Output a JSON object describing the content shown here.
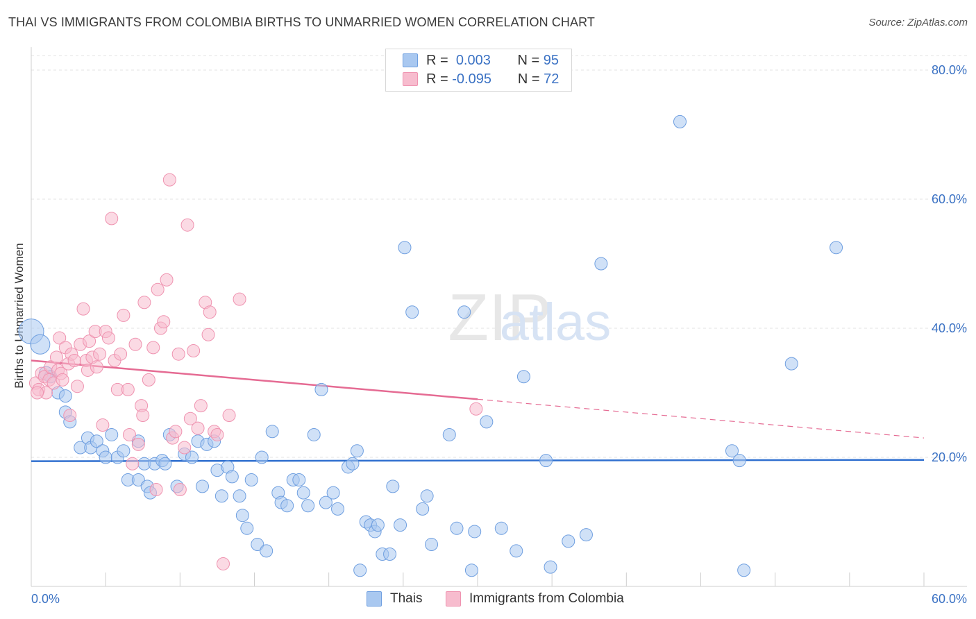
{
  "header": {
    "title": "THAI VS IMMIGRANTS FROM COLOMBIA BIRTHS TO UNMARRIED WOMEN CORRELATION CHART",
    "source": "Source: ZipAtlas.com"
  },
  "watermark": {
    "zip": "ZIP",
    "atlas": "atlas"
  },
  "legend": {
    "rows": [
      {
        "r_label": "R =",
        "r_value": "0.003",
        "n_label": "N =",
        "n_value": "95",
        "color": "#a9c8f0"
      },
      {
        "r_label": "R =",
        "r_value": "-0.095",
        "n_label": "N =",
        "n_value": "72",
        "color": "#f7bcce"
      }
    ]
  },
  "bottom_legend": {
    "items": [
      {
        "label": "Thais",
        "color": "#a9c8f0"
      },
      {
        "label": "Immigrants from Colombia",
        "color": "#f7bcce"
      }
    ]
  },
  "chart_data": {
    "type": "scatter",
    "title": "THAI VS IMMIGRANTS FROM COLOMBIA BIRTHS TO UNMARRIED WOMEN CORRELATION CHART",
    "xlabel": "",
    "ylabel": "Births to Unmarried Women",
    "xlim": [
      0,
      60
    ],
    "ylim": [
      0,
      82
    ],
    "x_tick_labels": [
      "0.0%",
      "60.0%"
    ],
    "y_ticks": [
      20,
      40,
      60,
      80
    ],
    "y_tick_labels": [
      "20.0%",
      "40.0%",
      "60.0%",
      "80.0%"
    ],
    "grid": true,
    "legend_position": "top-center",
    "series": [
      {
        "name": "Thais",
        "color": "#6f9fe0",
        "fill": "#a9c8f0",
        "trend": {
          "x": [
            0,
            60
          ],
          "y": [
            19.4,
            19.6
          ],
          "style": "solid",
          "color": "#2f6fcf"
        },
        "points": [
          [
            0.0,
            39.5,
            18
          ],
          [
            0.6,
            37.5,
            14
          ],
          [
            1.0,
            33.0,
            10
          ],
          [
            1.3,
            32.5,
            9
          ],
          [
            1.8,
            30.0,
            9
          ],
          [
            2.3,
            29.5,
            9
          ],
          [
            2.3,
            27.0,
            9
          ],
          [
            2.6,
            25.5,
            9
          ],
          [
            3.3,
            21.5,
            9
          ],
          [
            3.8,
            23.0,
            9
          ],
          [
            4.0,
            21.5,
            9
          ],
          [
            4.4,
            22.5,
            9
          ],
          [
            4.8,
            21.0,
            9
          ],
          [
            5.0,
            20.0,
            9
          ],
          [
            5.4,
            23.5,
            9
          ],
          [
            5.8,
            20.0,
            9
          ],
          [
            6.2,
            21.0,
            9
          ],
          [
            6.5,
            16.5,
            9
          ],
          [
            7.2,
            16.5,
            9
          ],
          [
            7.2,
            22.5,
            9
          ],
          [
            7.6,
            19.0,
            9
          ],
          [
            7.8,
            15.5,
            9
          ],
          [
            8.0,
            14.5,
            9
          ],
          [
            8.3,
            19.0,
            9
          ],
          [
            8.8,
            19.5,
            9
          ],
          [
            9.0,
            19.0,
            9
          ],
          [
            9.3,
            23.5,
            9
          ],
          [
            9.8,
            15.5,
            9
          ],
          [
            10.3,
            20.5,
            9
          ],
          [
            10.8,
            20.0,
            9
          ],
          [
            11.2,
            22.5,
            9
          ],
          [
            11.5,
            15.5,
            9
          ],
          [
            11.8,
            22.0,
            9
          ],
          [
            12.3,
            22.5,
            9
          ],
          [
            12.5,
            18.0,
            9
          ],
          [
            12.8,
            14.0,
            9
          ],
          [
            13.2,
            18.5,
            9
          ],
          [
            13.5,
            17.0,
            9
          ],
          [
            14.0,
            14.0,
            9
          ],
          [
            14.2,
            11.0,
            9
          ],
          [
            14.5,
            9.0,
            9
          ],
          [
            14.8,
            16.5,
            9
          ],
          [
            15.2,
            6.5,
            9
          ],
          [
            15.5,
            20.0,
            9
          ],
          [
            15.8,
            5.5,
            9
          ],
          [
            16.2,
            24.0,
            9
          ],
          [
            16.6,
            14.5,
            9
          ],
          [
            16.8,
            13.0,
            9
          ],
          [
            17.2,
            12.5,
            9
          ],
          [
            17.6,
            16.5,
            9
          ],
          [
            18.0,
            16.5,
            9
          ],
          [
            18.3,
            14.5,
            9
          ],
          [
            18.6,
            12.5,
            9
          ],
          [
            19.0,
            23.5,
            9
          ],
          [
            19.5,
            30.5,
            9
          ],
          [
            19.8,
            13.0,
            9
          ],
          [
            20.3,
            14.5,
            9
          ],
          [
            20.6,
            12.0,
            9
          ],
          [
            21.3,
            18.5,
            9
          ],
          [
            21.6,
            19.0,
            9
          ],
          [
            21.9,
            21.0,
            9
          ],
          [
            22.1,
            2.5,
            9
          ],
          [
            22.5,
            10.0,
            9
          ],
          [
            22.8,
            9.5,
            9
          ],
          [
            23.1,
            8.5,
            9
          ],
          [
            23.3,
            9.5,
            9
          ],
          [
            23.6,
            5.0,
            9
          ],
          [
            24.1,
            5.0,
            9
          ],
          [
            24.3,
            15.5,
            9
          ],
          [
            24.8,
            9.5,
            9
          ],
          [
            25.1,
            52.5,
            9
          ],
          [
            25.6,
            42.5,
            9
          ],
          [
            26.3,
            12.0,
            9
          ],
          [
            26.6,
            14.0,
            9
          ],
          [
            26.9,
            6.5,
            9
          ],
          [
            28.1,
            23.5,
            9
          ],
          [
            28.6,
            9.0,
            9
          ],
          [
            29.1,
            42.5,
            9
          ],
          [
            29.6,
            2.5,
            9
          ],
          [
            29.8,
            8.5,
            9
          ],
          [
            30.6,
            25.5,
            9
          ],
          [
            31.6,
            9.0,
            9
          ],
          [
            32.6,
            5.5,
            9
          ],
          [
            33.1,
            32.5,
            9
          ],
          [
            34.6,
            19.5,
            9
          ],
          [
            34.9,
            3.0,
            9
          ],
          [
            36.1,
            7.0,
            9
          ],
          [
            37.3,
            8.0,
            9
          ],
          [
            38.3,
            50.0,
            9
          ],
          [
            43.6,
            72.0,
            9
          ],
          [
            47.1,
            21.0,
            9
          ],
          [
            47.6,
            19.5,
            9
          ],
          [
            47.9,
            2.5,
            9
          ],
          [
            51.1,
            34.5,
            9
          ],
          [
            54.1,
            52.5,
            9
          ]
        ]
      },
      {
        "name": "Immigrants from Colombia",
        "color": "#ef93b0",
        "fill": "#f7bcce",
        "trend": {
          "x": [
            0,
            60
          ],
          "y": [
            35.0,
            23.0
          ],
          "solid_until_x": 30.0,
          "style": "solid-then-dashed",
          "color": "#e56b93"
        },
        "points": [
          [
            0.3,
            31.5,
            9
          ],
          [
            0.5,
            30.5,
            9
          ],
          [
            0.7,
            33.0,
            9
          ],
          [
            0.9,
            32.5,
            9
          ],
          [
            1.0,
            30.0,
            9
          ],
          [
            1.2,
            32.0,
            9
          ],
          [
            1.3,
            34.0,
            9
          ],
          [
            1.5,
            31.5,
            9
          ],
          [
            1.7,
            35.5,
            9
          ],
          [
            1.8,
            33.5,
            9
          ],
          [
            1.9,
            38.5,
            9
          ],
          [
            2.0,
            33.0,
            9
          ],
          [
            2.1,
            32.0,
            9
          ],
          [
            2.3,
            37.0,
            9
          ],
          [
            2.5,
            34.5,
            9
          ],
          [
            2.6,
            26.5,
            9
          ],
          [
            2.7,
            36.0,
            9
          ],
          [
            2.9,
            35.0,
            9
          ],
          [
            3.1,
            31.0,
            9
          ],
          [
            3.3,
            37.5,
            9
          ],
          [
            3.5,
            43.0,
            9
          ],
          [
            3.7,
            35.0,
            9
          ],
          [
            3.8,
            33.5,
            9
          ],
          [
            3.9,
            38.0,
            9
          ],
          [
            4.1,
            35.5,
            9
          ],
          [
            4.3,
            39.5,
            9
          ],
          [
            4.4,
            34.0,
            9
          ],
          [
            4.6,
            36.0,
            9
          ],
          [
            4.8,
            25.0,
            9
          ],
          [
            5.0,
            39.5,
            9
          ],
          [
            5.2,
            38.5,
            9
          ],
          [
            5.4,
            57.0,
            9
          ],
          [
            5.6,
            35.0,
            9
          ],
          [
            5.8,
            30.5,
            9
          ],
          [
            6.0,
            36.0,
            9
          ],
          [
            6.2,
            42.0,
            9
          ],
          [
            6.5,
            30.5,
            9
          ],
          [
            6.6,
            23.5,
            9
          ],
          [
            6.8,
            19.0,
            9
          ],
          [
            7.0,
            37.5,
            9
          ],
          [
            7.2,
            22.0,
            9
          ],
          [
            7.4,
            28.0,
            9
          ],
          [
            7.5,
            26.5,
            9
          ],
          [
            7.6,
            44.0,
            9
          ],
          [
            7.9,
            32.0,
            9
          ],
          [
            8.2,
            37.0,
            9
          ],
          [
            8.4,
            15.0,
            9
          ],
          [
            8.5,
            46.0,
            9
          ],
          [
            8.7,
            40.0,
            9
          ],
          [
            8.9,
            41.0,
            9
          ],
          [
            9.1,
            47.5,
            9
          ],
          [
            9.3,
            63.0,
            9
          ],
          [
            9.5,
            23.0,
            9
          ],
          [
            9.7,
            24.0,
            9
          ],
          [
            9.9,
            36.0,
            9
          ],
          [
            10.0,
            15.0,
            9
          ],
          [
            10.3,
            21.5,
            9
          ],
          [
            10.5,
            56.0,
            9
          ],
          [
            10.7,
            26.0,
            9
          ],
          [
            10.9,
            36.5,
            9
          ],
          [
            11.2,
            24.5,
            9
          ],
          [
            11.4,
            28.0,
            9
          ],
          [
            11.7,
            44.0,
            9
          ],
          [
            11.9,
            39.0,
            9
          ],
          [
            12.0,
            42.5,
            9
          ],
          [
            12.3,
            24.0,
            9
          ],
          [
            12.5,
            23.5,
            9
          ],
          [
            12.9,
            3.5,
            9
          ],
          [
            13.3,
            26.5,
            9
          ],
          [
            14.0,
            44.5,
            9
          ],
          [
            29.9,
            27.5,
            9
          ],
          [
            0.4,
            30.0,
            9
          ]
        ]
      }
    ]
  }
}
